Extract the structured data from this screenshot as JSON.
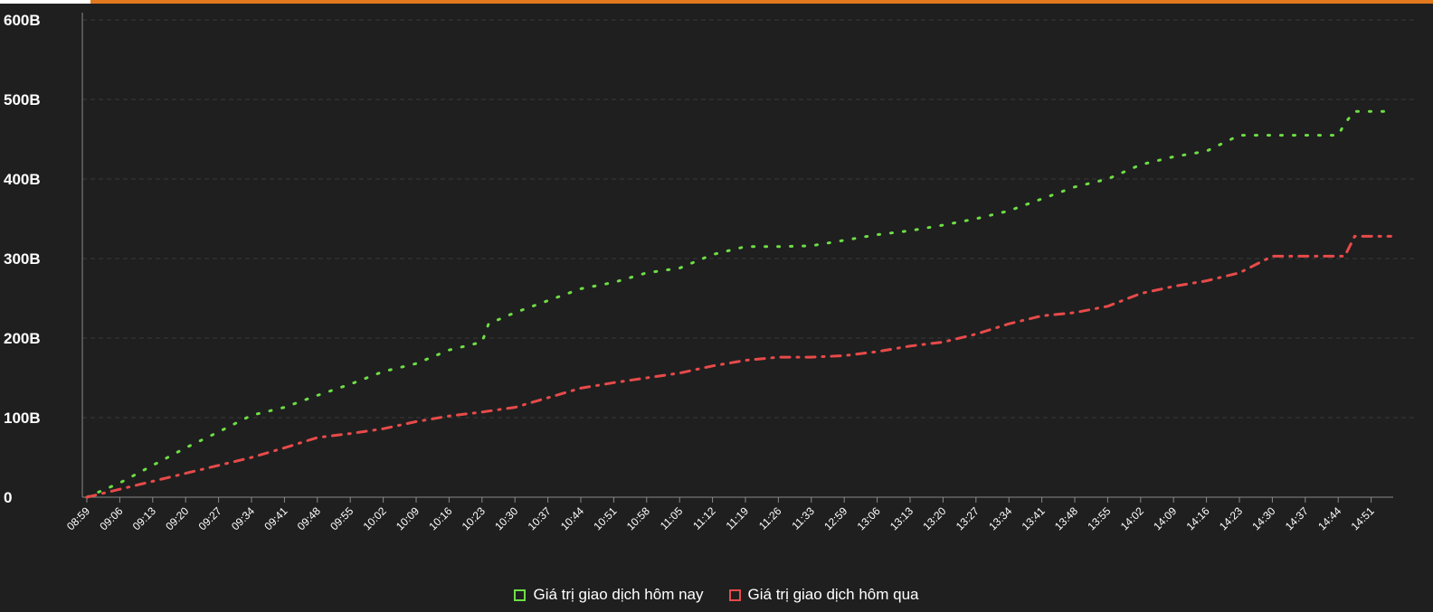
{
  "chart_data": {
    "type": "line",
    "title": "",
    "xlabel": "",
    "ylabel": "",
    "ylim": [
      0,
      600
    ],
    "yticks": [
      "0",
      "100B",
      "200B",
      "300B",
      "400B",
      "500B",
      "600B"
    ],
    "categories": [
      "08:59",
      "09:06",
      "09:13",
      "09:20",
      "09:27",
      "09:34",
      "09:41",
      "09:48",
      "09:55",
      "10:02",
      "10:09",
      "10:16",
      "10:23",
      "10:30",
      "10:37",
      "10:44",
      "10:51",
      "10:58",
      "11:05",
      "11:12",
      "11:19",
      "11:26",
      "11:33",
      "12:59",
      "13:06",
      "13:13",
      "13:20",
      "13:27",
      "13:34",
      "13:41",
      "13:48",
      "13:55",
      "14:02",
      "14:09",
      "14:16",
      "14:23",
      "14:30",
      "14:37",
      "14:44",
      "14:51"
    ],
    "grid": true,
    "legend_position": "bottom-center",
    "series": [
      {
        "name": "Giá trị giao dịch hôm nay",
        "color": "#6ede45",
        "style": "dotted",
        "x": [
          0,
          1,
          2,
          3,
          4,
          5,
          6,
          7,
          8,
          9,
          10,
          11,
          12,
          12.2,
          13,
          14,
          15,
          16,
          17,
          18,
          19,
          20,
          21,
          22,
          23,
          24,
          25,
          26,
          27,
          28,
          29,
          30,
          31,
          32,
          33,
          34,
          35,
          36,
          37,
          38,
          38.2,
          38.5,
          39,
          39.6
        ],
        "values": [
          0,
          18,
          40,
          62,
          82,
          103,
          113,
          128,
          142,
          158,
          168,
          185,
          195,
          218,
          232,
          247,
          262,
          270,
          282,
          288,
          305,
          315,
          315,
          316,
          323,
          330,
          335,
          342,
          350,
          360,
          375,
          390,
          400,
          418,
          428,
          435,
          455,
          455,
          455,
          455,
          470,
          485,
          485,
          485
        ]
      },
      {
        "name": "Giá trị giao dịch hôm qua",
        "color": "#e84a4a",
        "style": "dash-dot",
        "x": [
          0,
          1,
          2,
          3,
          4,
          5,
          6,
          7,
          8,
          9,
          10,
          11,
          12,
          13,
          14,
          15,
          16,
          17,
          18,
          19,
          20,
          21,
          22,
          23,
          24,
          25,
          26,
          27,
          28,
          29,
          30,
          31,
          32,
          33,
          34,
          35,
          36,
          37,
          38,
          38.2,
          38.5,
          39,
          39.6
        ],
        "values": [
          0,
          10,
          20,
          30,
          40,
          50,
          62,
          75,
          80,
          86,
          95,
          102,
          107,
          113,
          125,
          137,
          144,
          150,
          156,
          165,
          172,
          176,
          176,
          178,
          183,
          190,
          195,
          205,
          218,
          228,
          232,
          240,
          256,
          265,
          272,
          282,
          303,
          303,
          303,
          303,
          328,
          328,
          328
        ]
      }
    ]
  }
}
